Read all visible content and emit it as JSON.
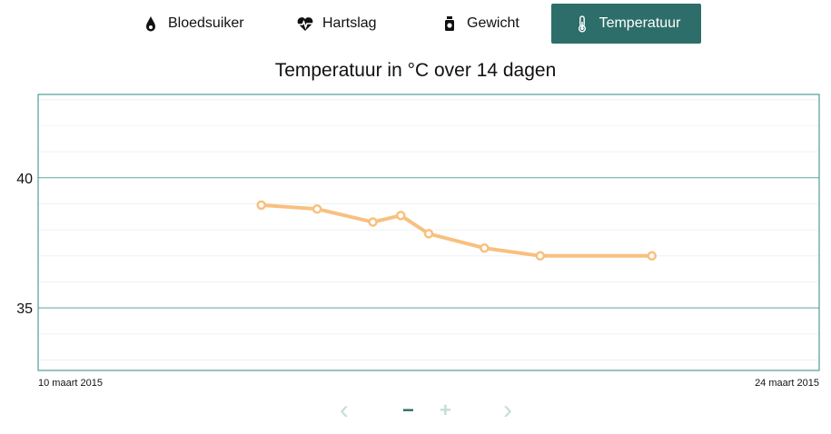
{
  "tabs": [
    {
      "label": "Bloedsuiker",
      "icon": "drop-icon",
      "active": false
    },
    {
      "label": "Hartslag",
      "icon": "heart-pulse-icon",
      "active": false
    },
    {
      "label": "Gewicht",
      "icon": "weight-jar-icon",
      "active": false
    },
    {
      "label": "Temperatuur",
      "icon": "thermometer-icon",
      "active": true
    }
  ],
  "colors": {
    "accent": "#2d6e6a",
    "line": "#f8c07f",
    "frame": "#2d8a84",
    "nav_inactive": "#c7dcda"
  },
  "chart_data": {
    "type": "line",
    "title": "Temperatuur in °C over 14 dagen",
    "xlabel": "",
    "ylabel": "",
    "x_start": "10 maart 2015",
    "x_end": "24 maart 2015",
    "ylim": [
      32.6,
      43.2
    ],
    "y_ticks": [
      35,
      40
    ],
    "grid": true,
    "series": [
      {
        "x": [
          "2015-03-14",
          "2015-03-15",
          "2015-03-16",
          "2015-03-16T12:00",
          "2015-03-17",
          "2015-03-18",
          "2015-03-19",
          "2015-03-21"
        ],
        "values": [
          38.95,
          38.8,
          38.3,
          38.55,
          37.85,
          37.3,
          37.0,
          37.0
        ]
      }
    ]
  },
  "nav": {
    "prev": "‹",
    "zoom_out": "−",
    "zoom_in": "+",
    "next": "›"
  }
}
